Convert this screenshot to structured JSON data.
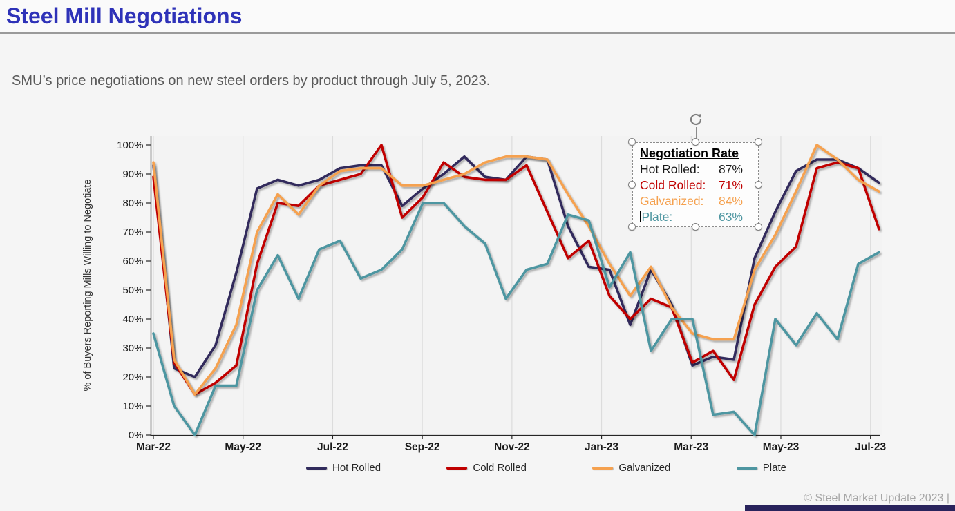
{
  "header": {
    "title": "Steel Mill Negotiations"
  },
  "subtitle": "SMU’s price negotiations on new steel orders by product through July 5, 2023.",
  "annotation": {
    "title": "Negotiation Rate",
    "rows": [
      {
        "label": "Hot Rolled:",
        "value": "87%",
        "color": "#1a1a1a",
        "caret": false
      },
      {
        "label": "Cold Rolled:",
        "value": "71%",
        "color": "#c00000",
        "caret": false
      },
      {
        "label": "Galvanized:",
        "value": "84%",
        "color": "#f5a14f",
        "caret": false
      },
      {
        "label": "Plate:",
        "value": "63%",
        "color": "#4e96a1",
        "caret": true
      }
    ]
  },
  "footer": {
    "copyright": "© Steel Market Update 2023 |"
  },
  "colors": {
    "title": "#2e32b8",
    "accent_bar": "#29235c",
    "gridline": "#dcdcdc",
    "axis": "#262626",
    "plot_bg": "#f3f3f3"
  },
  "chart_data": {
    "type": "line",
    "title": "",
    "xlabel": "",
    "ylabel": "% of Buyers Reporting Mills Willing to Negotiate",
    "ylim": [
      0,
      100
    ],
    "grid": "vertical-only",
    "legend_position": "bottom",
    "yticks": [
      "0%",
      "10%",
      "20%",
      "30%",
      "40%",
      "50%",
      "60%",
      "70%",
      "80%",
      "90%",
      "100%"
    ],
    "xticks": [
      "Mar-22",
      "May-22",
      "Jul-22",
      "Sep-22",
      "Nov-22",
      "Jan-23",
      "Mar-23",
      "May-23",
      "Jul-23"
    ],
    "x": [
      "2022-03-02",
      "2022-03-16",
      "2022-03-30",
      "2022-04-13",
      "2022-04-27",
      "2022-05-11",
      "2022-05-25",
      "2022-06-08",
      "2022-06-22",
      "2022-07-06",
      "2022-07-20",
      "2022-08-03",
      "2022-08-17",
      "2022-08-31",
      "2022-09-14",
      "2022-09-28",
      "2022-10-12",
      "2022-10-26",
      "2022-11-09",
      "2022-11-23",
      "2022-12-07",
      "2022-12-21",
      "2023-01-04",
      "2023-01-18",
      "2023-02-01",
      "2023-02-15",
      "2023-03-01",
      "2023-03-15",
      "2023-03-29",
      "2023-04-12",
      "2023-04-26",
      "2023-05-10",
      "2023-05-24",
      "2023-06-07",
      "2023-06-21",
      "2023-07-05"
    ],
    "series": [
      {
        "name": "Hot Rolled",
        "color": "#312b5c",
        "values": [
          93,
          23,
          20,
          31,
          56,
          85,
          88,
          86,
          88,
          92,
          93,
          93,
          79,
          85,
          90,
          96,
          89,
          88,
          96,
          95,
          72,
          58,
          57,
          38,
          57,
          45,
          24,
          27,
          26,
          61,
          77,
          91,
          95,
          95,
          92,
          87
        ]
      },
      {
        "name": "Cold Rolled",
        "color": "#c00000",
        "values": [
          89,
          25,
          14,
          18,
          24,
          59,
          80,
          79,
          86,
          88,
          90,
          100,
          75,
          82,
          94,
          89,
          88,
          88,
          93,
          77,
          61,
          67,
          48,
          40,
          47,
          44,
          25,
          29,
          19,
          45,
          58,
          65,
          92,
          94,
          92,
          71
        ]
      },
      {
        "name": "Galvanized",
        "color": "#f5a14f",
        "values": [
          94,
          26,
          14,
          23,
          38,
          70,
          83,
          76,
          86,
          91,
          92,
          92,
          86,
          86,
          88,
          90,
          94,
          96,
          96,
          95,
          83,
          72,
          59,
          48,
          58,
          44,
          35,
          33,
          33,
          57,
          69,
          84,
          100,
          95,
          88,
          84
        ]
      },
      {
        "name": "Plate",
        "color": "#4e96a1",
        "values": [
          35,
          10,
          0,
          17,
          17,
          50,
          62,
          47,
          64,
          67,
          54,
          57,
          64,
          80,
          80,
          72,
          66,
          47,
          57,
          59,
          76,
          74,
          51,
          63,
          29,
          40,
          40,
          7,
          8,
          0,
          40,
          31,
          42,
          33,
          59,
          63
        ]
      }
    ]
  }
}
